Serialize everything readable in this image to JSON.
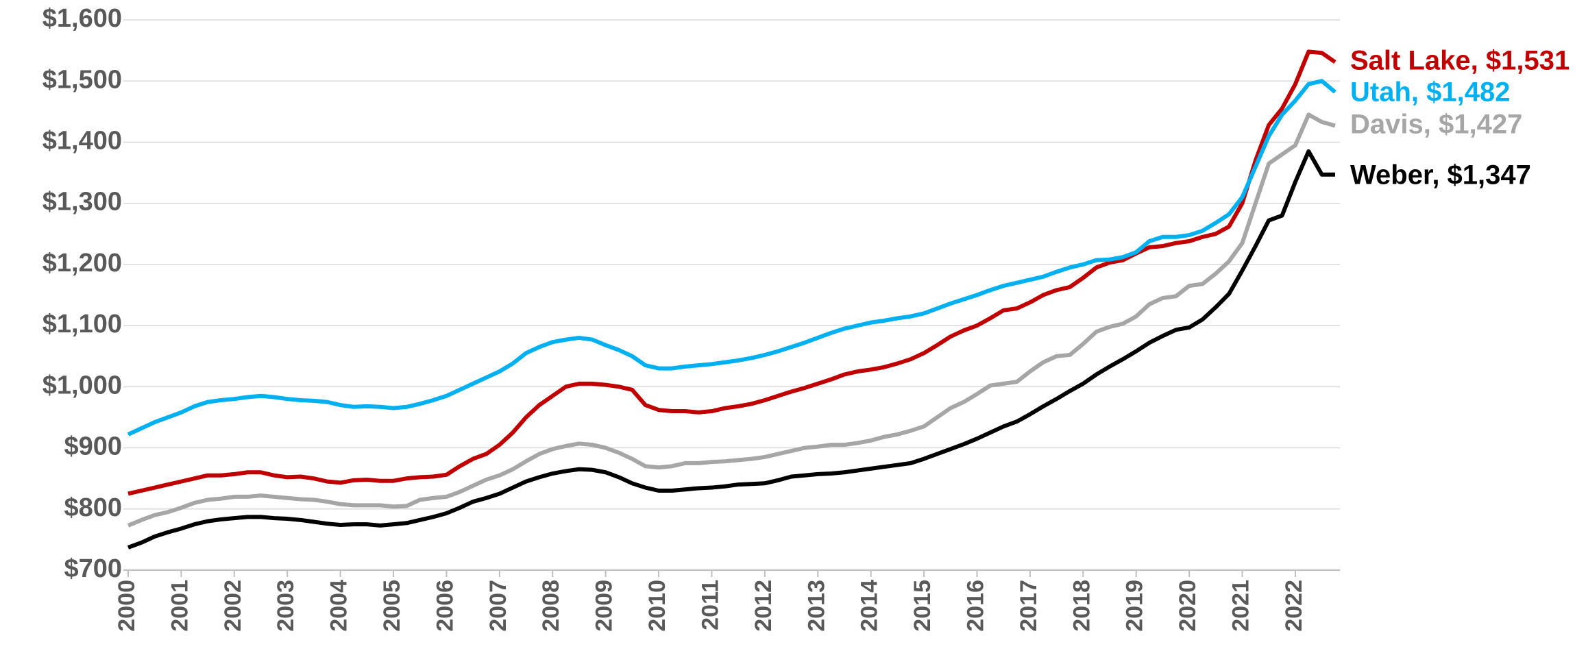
{
  "chart_data": {
    "type": "line",
    "x": [
      2000,
      2000.25,
      2000.5,
      2000.75,
      2001,
      2001.25,
      2001.5,
      2001.75,
      2002,
      2002.25,
      2002.5,
      2002.75,
      2003,
      2003.25,
      2003.5,
      2003.75,
      2004,
      2004.25,
      2004.5,
      2004.75,
      2005,
      2005.25,
      2005.5,
      2005.75,
      2006,
      2006.25,
      2006.5,
      2006.75,
      2007,
      2007.25,
      2007.5,
      2007.75,
      2008,
      2008.25,
      2008.5,
      2008.75,
      2009,
      2009.25,
      2009.5,
      2009.75,
      2010,
      2010.25,
      2010.5,
      2010.75,
      2011,
      2011.25,
      2011.5,
      2011.75,
      2012,
      2012.25,
      2012.5,
      2012.75,
      2013,
      2013.25,
      2013.5,
      2013.75,
      2014,
      2014.25,
      2014.5,
      2014.75,
      2015,
      2015.25,
      2015.5,
      2015.75,
      2016,
      2016.25,
      2016.5,
      2016.75,
      2017,
      2017.25,
      2017.5,
      2017.75,
      2018,
      2018.25,
      2018.5,
      2018.75,
      2019,
      2019.25,
      2019.5,
      2019.75,
      2020,
      2020.25,
      2020.5,
      2020.75,
      2021,
      2021.25,
      2021.5,
      2021.75,
      2022,
      2022.25,
      2022.5,
      2022.75
    ],
    "series": [
      {
        "name": "Salt Lake, $1,531",
        "color": "#c00000",
        "values": [
          825,
          830,
          835,
          840,
          845,
          850,
          855,
          855,
          857,
          860,
          860,
          855,
          852,
          853,
          850,
          845,
          843,
          847,
          848,
          846,
          846,
          850,
          852,
          853,
          856,
          870,
          882,
          890,
          905,
          925,
          950,
          970,
          985,
          1000,
          1005,
          1005,
          1003,
          1000,
          995,
          970,
          962,
          960,
          960,
          958,
          960,
          965,
          968,
          972,
          978,
          985,
          992,
          998,
          1005,
          1012,
          1020,
          1025,
          1028,
          1032,
          1038,
          1045,
          1055,
          1068,
          1082,
          1092,
          1100,
          1112,
          1125,
          1128,
          1138,
          1150,
          1158,
          1163,
          1178,
          1195,
          1203,
          1207,
          1218,
          1228,
          1230,
          1235,
          1238,
          1245,
          1250,
          1262,
          1300,
          1370,
          1428,
          1455,
          1495,
          1548,
          1546,
          1531
        ]
      },
      {
        "name": "Utah, $1,482",
        "color": "#00b0f0",
        "values": [
          922,
          932,
          942,
          950,
          958,
          968,
          975,
          978,
          980,
          983,
          985,
          983,
          980,
          978,
          977,
          975,
          970,
          967,
          968,
          967,
          965,
          967,
          972,
          978,
          985,
          995,
          1005,
          1015,
          1025,
          1038,
          1055,
          1065,
          1073,
          1077,
          1080,
          1077,
          1068,
          1060,
          1050,
          1035,
          1030,
          1030,
          1033,
          1035,
          1037,
          1040,
          1043,
          1047,
          1052,
          1058,
          1065,
          1072,
          1080,
          1088,
          1095,
          1100,
          1105,
          1108,
          1112,
          1115,
          1120,
          1128,
          1136,
          1143,
          1150,
          1158,
          1165,
          1170,
          1175,
          1180,
          1188,
          1195,
          1200,
          1207,
          1208,
          1212,
          1220,
          1238,
          1245,
          1245,
          1248,
          1255,
          1268,
          1282,
          1310,
          1360,
          1410,
          1445,
          1468,
          1495,
          1500,
          1482
        ]
      },
      {
        "name": "Davis, $1,427",
        "color": "#a6a6a6",
        "values": [
          773,
          782,
          790,
          795,
          802,
          810,
          815,
          817,
          820,
          820,
          822,
          820,
          818,
          816,
          815,
          812,
          808,
          806,
          806,
          806,
          804,
          805,
          815,
          818,
          820,
          828,
          838,
          848,
          855,
          865,
          878,
          890,
          898,
          903,
          907,
          905,
          900,
          892,
          882,
          870,
          868,
          870,
          875,
          875,
          877,
          878,
          880,
          882,
          885,
          890,
          895,
          900,
          902,
          905,
          905,
          908,
          912,
          918,
          922,
          928,
          935,
          950,
          965,
          975,
          988,
          1002,
          1005,
          1008,
          1025,
          1040,
          1050,
          1052,
          1070,
          1090,
          1098,
          1103,
          1115,
          1135,
          1145,
          1148,
          1165,
          1168,
          1185,
          1205,
          1235,
          1300,
          1365,
          1380,
          1395,
          1445,
          1433,
          1427
        ]
      },
      {
        "name": "Weber, $1,347",
        "color": "#000000",
        "values": [
          737,
          745,
          755,
          762,
          768,
          775,
          780,
          783,
          785,
          787,
          787,
          785,
          784,
          782,
          779,
          776,
          774,
          775,
          775,
          773,
          775,
          777,
          782,
          787,
          793,
          802,
          812,
          818,
          825,
          835,
          845,
          852,
          858,
          862,
          865,
          864,
          860,
          852,
          842,
          835,
          830,
          830,
          832,
          834,
          835,
          837,
          840,
          841,
          842,
          847,
          853,
          855,
          857,
          858,
          860,
          863,
          866,
          869,
          872,
          875,
          882,
          890,
          898,
          906,
          915,
          925,
          935,
          943,
          955,
          968,
          980,
          993,
          1005,
          1020,
          1033,
          1045,
          1058,
          1072,
          1083,
          1093,
          1097,
          1110,
          1130,
          1152,
          1190,
          1230,
          1272,
          1280,
          1335,
          1385,
          1347,
          1347
        ]
      }
    ],
    "xlim": [
      2000,
      2022.75
    ],
    "xticks": [
      2000,
      2001,
      2002,
      2003,
      2004,
      2005,
      2006,
      2007,
      2008,
      2009,
      2010,
      2011,
      2012,
      2013,
      2014,
      2015,
      2016,
      2017,
      2018,
      2019,
      2020,
      2021,
      2022
    ],
    "ylim": [
      700,
      1600
    ],
    "yticks": [
      {
        "value": 700,
        "label": "$700"
      },
      {
        "value": 800,
        "label": "$800"
      },
      {
        "value": 900,
        "label": "$900"
      },
      {
        "value": 1000,
        "label": "$1,000"
      },
      {
        "value": 1100,
        "label": "$1,100"
      },
      {
        "value": 1200,
        "label": "$1,200"
      },
      {
        "value": 1300,
        "label": "$1,300"
      },
      {
        "value": 1400,
        "label": "$1,400"
      },
      {
        "value": 1500,
        "label": "$1,500"
      },
      {
        "value": 1600,
        "label": "$1,600"
      }
    ],
    "grid": true
  }
}
